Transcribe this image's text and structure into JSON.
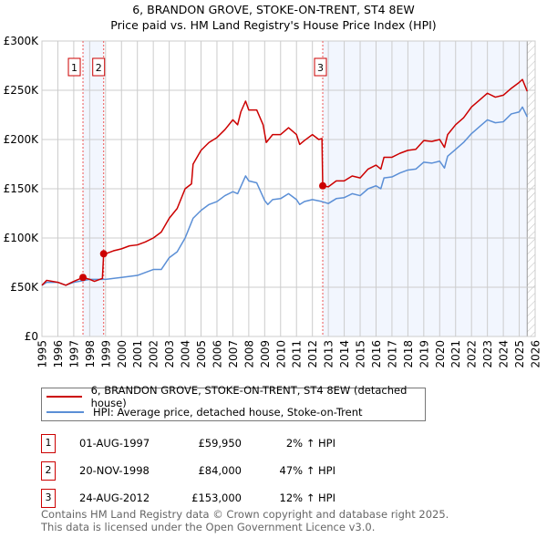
{
  "title": "6, BRANDON GROVE, STOKE-ON-TRENT, ST4 8EW",
  "subtitle": "Price paid vs. HM Land Registry's House Price Index (HPI)",
  "chart_data": {
    "type": "line",
    "title": "6, BRANDON GROVE, STOKE-ON-TRENT, ST4 8EW",
    "subtitle": "Price paid vs. HM Land Registry's House Price Index (HPI)",
    "xlim": [
      1995,
      2026
    ],
    "ylim": [
      0,
      300000
    ],
    "x_ticks": [
      "1995",
      "1996",
      "1997",
      "1998",
      "1999",
      "2000",
      "2001",
      "2002",
      "2003",
      "2004",
      "2005",
      "2006",
      "2007",
      "2008",
      "2009",
      "2010",
      "2011",
      "2012",
      "2013",
      "2014",
      "2015",
      "2016",
      "2017",
      "2018",
      "2019",
      "2020",
      "2021",
      "2022",
      "2023",
      "2024",
      "2025",
      "2026"
    ],
    "y_ticks": [
      {
        "v": 0,
        "label": "£0"
      },
      {
        "v": 50000,
        "label": "£50K"
      },
      {
        "v": 100000,
        "label": "£100K"
      },
      {
        "v": 150000,
        "label": "£150K"
      },
      {
        "v": 200000,
        "label": "£200K"
      },
      {
        "v": 250000,
        "label": "£250K"
      },
      {
        "v": 300000,
        "label": "£300K"
      }
    ],
    "grid": true,
    "series": [
      {
        "name": "6, BRANDON GROVE, STOKE-ON-TRENT, ST4 8EW (detached house)",
        "color": "#cc0000",
        "x": [
          1995,
          1995.3,
          1996,
          1996.5,
          1997,
          1997.58,
          1998,
          1998.3,
          1998.8,
          1998.88,
          1999,
          1999.5,
          2000,
          2000.5,
          2001,
          2001.5,
          2002,
          2002.5,
          2003,
          2003.5,
          2004,
          2004.4,
          2004.5,
          2005,
          2005.5,
          2006,
          2006.5,
          2007,
          2007.3,
          2007.5,
          2007.8,
          2008,
          2008.5,
          2008.9,
          2009.1,
          2009.5,
          2010,
          2010.5,
          2011,
          2011.2,
          2011.5,
          2012,
          2012.4,
          2012.6,
          2012.65,
          2013,
          2013.5,
          2014,
          2014.5,
          2015,
          2015.5,
          2016,
          2016.3,
          2016.5,
          2017,
          2017.5,
          2018,
          2018.5,
          2019,
          2019.5,
          2020,
          2020.3,
          2020.5,
          2021,
          2021.5,
          2022,
          2022.5,
          2023,
          2023.5,
          2024,
          2024.5,
          2025,
          2025.2,
          2025.5
        ],
        "y": [
          52000,
          57000,
          55000,
          52000,
          56000,
          59950,
          58000,
          56000,
          59000,
          84000,
          84000,
          87000,
          89000,
          92000,
          93000,
          96000,
          100000,
          106000,
          120000,
          130000,
          150000,
          155000,
          175000,
          189000,
          197000,
          202000,
          210000,
          220000,
          215000,
          228000,
          239000,
          230000,
          230000,
          215000,
          197000,
          205000,
          205000,
          212000,
          205000,
          195000,
          199000,
          205000,
          200000,
          201000,
          153000,
          152000,
          158000,
          158000,
          163000,
          161000,
          170000,
          174000,
          170000,
          182000,
          182000,
          186000,
          189000,
          190000,
          199000,
          198000,
          200000,
          192000,
          205000,
          215000,
          222000,
          233000,
          240000,
          247000,
          243000,
          245000,
          252000,
          258000,
          261000,
          249000
        ]
      },
      {
        "name": "HPI: Average price, detached house, Stoke-on-Trent",
        "color": "#5b8fd6",
        "x": [
          1995,
          1995.3,
          1996,
          1996.5,
          1997,
          1998,
          1999,
          2000,
          2001,
          2002,
          2002.5,
          2003,
          2003.5,
          2004,
          2004.5,
          2005,
          2005.5,
          2006,
          2006.5,
          2007,
          2007.3,
          2007.8,
          2008,
          2008.5,
          2009,
          2009.2,
          2009.5,
          2010,
          2010.5,
          2011,
          2011.2,
          2011.5,
          2012,
          2012.6,
          2013,
          2013.5,
          2014,
          2014.5,
          2015,
          2015.5,
          2016,
          2016.3,
          2016.5,
          2017,
          2017.5,
          2018,
          2018.5,
          2019,
          2019.5,
          2020,
          2020.3,
          2020.5,
          2021,
          2021.5,
          2022,
          2022.5,
          2023,
          2023.5,
          2024,
          2024.5,
          2025,
          2025.2,
          2025.5
        ],
        "y": [
          52000,
          55000,
          55000,
          52000,
          55000,
          58000,
          58000,
          60000,
          62000,
          68000,
          68000,
          80000,
          86000,
          100000,
          120000,
          128000,
          134000,
          137000,
          143000,
          147000,
          145000,
          163000,
          158000,
          156000,
          138000,
          134000,
          139000,
          140000,
          145000,
          139000,
          134000,
          137000,
          139000,
          137000,
          135000,
          140000,
          141000,
          145000,
          143000,
          150000,
          153000,
          150000,
          161000,
          162000,
          166000,
          169000,
          170000,
          177000,
          176000,
          178000,
          171000,
          183000,
          190000,
          197000,
          206000,
          213000,
          220000,
          217000,
          218000,
          226000,
          228000,
          233000,
          223000
        ]
      }
    ],
    "sales": [
      {
        "n": "1",
        "x": 1997.58,
        "y": 59950,
        "date": "01-AUG-1997",
        "price": "£59,950",
        "hpi": "2% ↑ HPI"
      },
      {
        "n": "2",
        "x": 1998.88,
        "y": 84000,
        "date": "20-NOV-1998",
        "price": "£84,000",
        "hpi": "47% ↑ HPI"
      },
      {
        "n": "3",
        "x": 2012.65,
        "y": 153000,
        "date": "24-AUG-2012",
        "price": "£153,000",
        "hpi": "12% ↑ HPI"
      }
    ],
    "shaded_ranges": [
      [
        1997.58,
        1998.88
      ],
      [
        2012.65,
        2025.5
      ]
    ],
    "forecast_hatch_from": 2025.5,
    "legend": "bottom"
  },
  "legend": {
    "red": "6, BRANDON GROVE, STOKE-ON-TRENT, ST4 8EW (detached house)",
    "blue": "HPI: Average price, detached house, Stoke-on-Trent"
  },
  "footer": {
    "line1": "Contains HM Land Registry data © Crown copyright and database right 2025.",
    "line2": "This data is licensed under the Open Government Licence v3.0."
  }
}
